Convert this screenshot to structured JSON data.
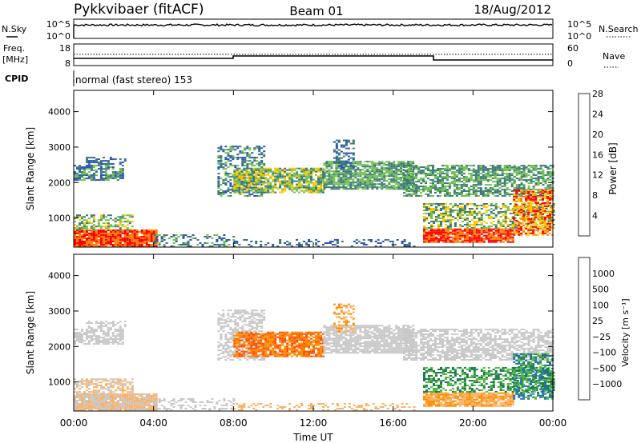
{
  "header": {
    "station": "Pykkvibaer (fitACF)",
    "beam": "Beam 01",
    "date": "18/Aug/2012"
  },
  "nsky_panel": {
    "left_label": "N.Sky",
    "right_label": "N.Search",
    "left_ticks": [
      "10^5",
      "10^0"
    ],
    "right_ticks": [
      "10^5",
      "10^0"
    ]
  },
  "freq_panel": {
    "left_label_1": "Freq.",
    "left_label_2": "[MHz]",
    "right_label": "Nave",
    "left_ticks": [
      "18",
      "8"
    ],
    "right_ticks": [
      "60",
      "0"
    ]
  },
  "cpid": {
    "label": "CPID",
    "text": "normal (fast stereo) 153"
  },
  "chart_data": [
    {
      "type": "heatmap",
      "name": "power",
      "ylabel": "Slant Range [km]",
      "ylim": [
        180,
        4600
      ],
      "yticks": [
        "1000",
        "2000",
        "3000",
        "4000"
      ],
      "colorbar_label": "Power [dB]",
      "colorbar_ticks": [
        "4",
        "8",
        "12",
        "16",
        "20",
        "24",
        "28"
      ],
      "colors": [
        "#0000ff",
        "#2b52b8",
        "#3d7a78",
        "#70c050",
        "#ffc800",
        "#ff7f00",
        "#ff0000"
      ]
    },
    {
      "type": "heatmap",
      "name": "velocity",
      "ylabel": "Slant Range [km]",
      "ylim": [
        180,
        4600
      ],
      "yticks": [
        "1000",
        "2000",
        "3000",
        "4000"
      ],
      "colorbar_label": "Velocity [m s⁻¹]",
      "colorbar_ticks": [
        "1000",
        "500",
        "100",
        "25",
        "−25",
        "−100",
        "−500",
        "−1000"
      ],
      "colors": [
        "#1030a0",
        "#2070c0",
        "#207a50",
        "#50b840",
        "#c8c8c8",
        "#ffb060",
        "#ff8c00",
        "#ff5000",
        "#ff0000"
      ]
    }
  ],
  "xaxis": {
    "label": "Time UT",
    "ticks": [
      "00:00",
      "04:00",
      "08:00",
      "12:00",
      "16:00",
      "20:00",
      "00:00"
    ]
  }
}
